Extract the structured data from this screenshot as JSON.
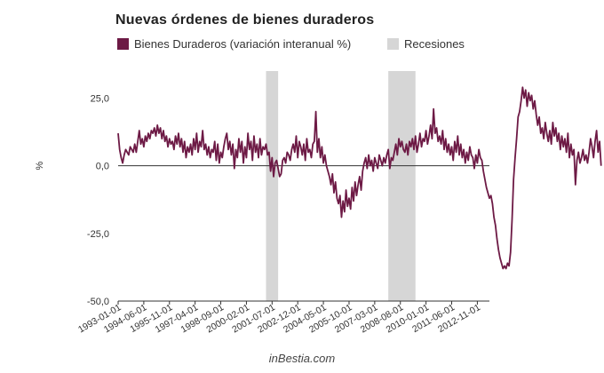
{
  "chart_data": {
    "type": "line",
    "title": "Nuevas órdenes de bienes duraderos",
    "ylabel": "%",
    "xlabel": "",
    "ylim": [
      -50,
      35
    ],
    "yticks": [
      {
        "value": 25,
        "label": "25,0"
      },
      {
        "value": 0,
        "label": "0,0"
      },
      {
        "value": -25,
        "label": "-25,0"
      },
      {
        "value": -50,
        "label": "-50,0"
      }
    ],
    "x_start": 1993.0,
    "x_step_months": 1,
    "xticks": [
      {
        "value": 1993.0,
        "label": "1993-01-01"
      },
      {
        "value": 1994.4167,
        "label": "1994-06-01"
      },
      {
        "value": 1995.8333,
        "label": "1995-11-01"
      },
      {
        "value": 1997.25,
        "label": "1997-04-01"
      },
      {
        "value": 1998.6667,
        "label": "1998-09-01"
      },
      {
        "value": 2000.0833,
        "label": "2000-02-01"
      },
      {
        "value": 2001.5,
        "label": "2001-07-01"
      },
      {
        "value": 2002.9167,
        "label": "2002-12-01"
      },
      {
        "value": 2004.3333,
        "label": "2004-05-01"
      },
      {
        "value": 2005.75,
        "label": "2005-10-01"
      },
      {
        "value": 2007.1667,
        "label": "2007-03-01"
      },
      {
        "value": 2008.5833,
        "label": "2008-08-01"
      },
      {
        "value": 2010.0,
        "label": "2010-01-01"
      },
      {
        "value": 2011.4167,
        "label": "2011-06-01"
      },
      {
        "value": 2012.8333,
        "label": "2012-11-01"
      }
    ],
    "series": [
      {
        "name": "Bienes Duraderos (variación interanual %)",
        "color": "#6d1a45",
        "values": [
          12,
          6,
          3,
          1,
          4,
          6,
          5,
          4,
          7,
          6,
          5,
          8,
          5,
          9,
          13,
          8,
          10,
          7,
          11,
          9,
          12,
          10,
          13,
          12,
          14,
          11,
          15,
          12,
          14,
          10,
          13,
          9,
          11,
          7,
          10,
          8,
          9,
          6,
          11,
          8,
          12,
          7,
          10,
          5,
          9,
          3,
          7,
          5,
          8,
          4,
          10,
          6,
          12,
          5,
          9,
          7,
          13,
          6,
          8,
          4,
          7,
          3,
          6,
          5,
          9,
          2,
          8,
          1,
          5,
          3,
          7,
          10,
          12,
          6,
          9,
          4,
          8,
          -1,
          6,
          3,
          10,
          5,
          9,
          1,
          7,
          3,
          12,
          6,
          9,
          2,
          11,
          5,
          8,
          3,
          10,
          4,
          7,
          6,
          8,
          4,
          5,
          -2,
          3,
          -4,
          1,
          2,
          -1,
          -4,
          -3,
          2,
          3,
          1,
          5,
          4,
          2,
          6,
          8,
          5,
          11,
          3,
          9,
          7,
          4,
          8,
          2,
          10,
          5,
          6,
          3,
          8,
          9,
          20,
          5,
          10,
          3,
          7,
          1,
          4,
          0,
          -2,
          -4,
          -7,
          -3,
          -10,
          -6,
          -12,
          -14,
          -11,
          -19,
          -13,
          -17,
          -9,
          -15,
          -12,
          -16,
          -8,
          -13,
          -6,
          -11,
          -7,
          -4,
          -9,
          -2,
          1,
          3,
          -1,
          4,
          0,
          2,
          -2,
          3,
          1,
          -1,
          4,
          2,
          0,
          3,
          1,
          4,
          6,
          -1,
          3,
          2,
          5,
          8,
          4,
          10,
          7,
          9,
          6,
          5,
          8,
          4,
          9,
          7,
          10,
          6,
          11,
          5,
          8,
          12,
          7,
          10,
          9,
          13,
          8,
          11,
          15,
          10,
          21,
          12,
          14,
          9,
          11,
          8,
          13,
          6,
          10,
          5,
          8,
          4,
          7,
          2,
          9,
          5,
          11,
          4,
          8,
          3,
          6,
          1,
          5,
          2,
          7,
          4,
          3,
          -1,
          4,
          1,
          6,
          3,
          2,
          -2,
          -5,
          -8,
          -10,
          -12,
          -11,
          -14,
          -19,
          -22,
          -27,
          -31,
          -34,
          -36,
          -38,
          -37,
          -38,
          -36,
          -37,
          -32,
          -20,
          -5,
          3,
          10,
          18,
          20,
          24,
          29,
          25,
          28,
          22,
          27,
          24,
          26,
          21,
          24,
          19,
          15,
          18,
          12,
          14,
          10,
          16,
          12,
          9,
          13,
          8,
          16,
          11,
          14,
          9,
          12,
          6,
          11,
          7,
          10,
          5,
          12,
          3,
          8,
          4,
          6,
          -7,
          2,
          5,
          1,
          3,
          6,
          2,
          4,
          1,
          5,
          10,
          7,
          3,
          9,
          13,
          5,
          9,
          0
        ]
      }
    ],
    "recessions": [
      {
        "label": "Recesiones",
        "start": 2001.1667,
        "end": 2001.8333
      },
      {
        "label": "Recesiones",
        "start": 2007.9167,
        "end": 2009.4167
      }
    ],
    "legend": [
      {
        "label": "Bienes Duraderos (variación interanual %)",
        "color": "#6d1a45"
      },
      {
        "label": "Recesiones",
        "color": "#d6d6d6"
      }
    ],
    "legend_position": "top-left",
    "grid": false
  },
  "source": "inBestia.com"
}
